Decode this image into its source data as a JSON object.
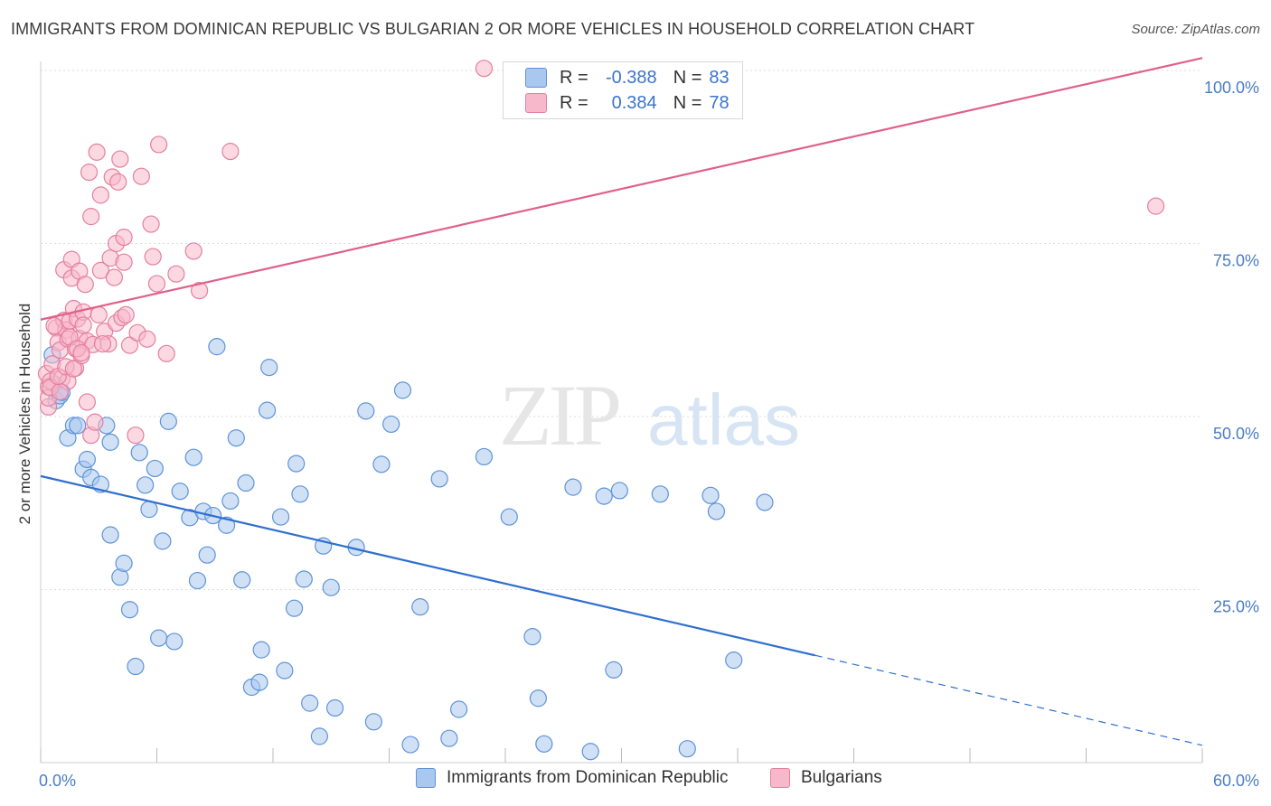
{
  "header": {
    "title": "IMMIGRANTS FROM DOMINICAN REPUBLIC VS BULGARIAN 2 OR MORE VEHICLES IN HOUSEHOLD CORRELATION CHART",
    "source": "Source: ZipAtlas.com"
  },
  "watermark": {
    "zip": "ZIP",
    "atlas": "atlas"
  },
  "legend": {
    "r_label": "R =",
    "n_label": "N =",
    "rows": [
      {
        "r": "-0.388",
        "n": "83"
      },
      {
        "r": "0.384",
        "n": "78"
      }
    ]
  },
  "colors": {
    "blue_fill": "#a9c8ef",
    "blue_stroke": "#5e93d8",
    "blue_line": "#2f6fd0",
    "pink_fill": "#f7b8cb",
    "pink_stroke": "#e57f9f",
    "pink_line": "#e0608a",
    "grid": "#dddddd",
    "tick_text": "#4a7cc7"
  },
  "chart_data": {
    "type": "scatter",
    "ylabel": "2 or more Vehicles in Household",
    "xlim": [
      0,
      60
    ],
    "ylim": [
      0,
      100
    ],
    "x_tick_labels": [
      "0.0%",
      "60.0%"
    ],
    "y_ticks": [
      {
        "value": 25,
        "label": "25.0%"
      },
      {
        "value": 50,
        "label": "50.0%"
      },
      {
        "value": 75,
        "label": "75.0%"
      },
      {
        "value": 100,
        "label": "100.0%"
      }
    ],
    "series": [
      {
        "name": "Immigrants from Dominican Republic",
        "color": "#5e93d8",
        "points": [
          [
            0.6,
            58.9
          ],
          [
            0.7,
            54.7
          ],
          [
            0.8,
            52.3
          ],
          [
            1.0,
            53.0
          ],
          [
            1.1,
            53.5
          ],
          [
            1.4,
            46.9
          ],
          [
            1.7,
            48.7
          ],
          [
            1.9,
            48.7
          ],
          [
            2.2,
            42.4
          ],
          [
            2.6,
            41.2
          ],
          [
            2.4,
            43.8
          ],
          [
            3.1,
            40.2
          ],
          [
            3.4,
            48.7
          ],
          [
            3.6,
            46.3
          ],
          [
            3.6,
            32.9
          ],
          [
            4.1,
            26.8
          ],
          [
            4.3,
            28.8
          ],
          [
            4.6,
            22.1
          ],
          [
            4.9,
            13.9
          ],
          [
            5.1,
            44.8
          ],
          [
            5.4,
            40.1
          ],
          [
            5.6,
            36.6
          ],
          [
            5.9,
            42.5
          ],
          [
            6.1,
            18.0
          ],
          [
            6.3,
            32.0
          ],
          [
            6.6,
            49.3
          ],
          [
            6.9,
            17.5
          ],
          [
            7.2,
            39.2
          ],
          [
            7.7,
            35.4
          ],
          [
            7.9,
            44.1
          ],
          [
            8.1,
            26.3
          ],
          [
            8.4,
            36.3
          ],
          [
            8.6,
            30.0
          ],
          [
            8.9,
            35.7
          ],
          [
            9.1,
            60.1
          ],
          [
            9.6,
            34.3
          ],
          [
            9.8,
            37.8
          ],
          [
            10.1,
            46.9
          ],
          [
            10.4,
            26.4
          ],
          [
            10.6,
            40.4
          ],
          [
            10.9,
            10.9
          ],
          [
            11.3,
            11.6
          ],
          [
            11.4,
            16.3
          ],
          [
            11.7,
            50.9
          ],
          [
            11.8,
            57.1
          ],
          [
            12.4,
            35.5
          ],
          [
            12.6,
            13.3
          ],
          [
            13.1,
            22.3
          ],
          [
            13.2,
            43.2
          ],
          [
            13.4,
            38.8
          ],
          [
            13.6,
            26.5
          ],
          [
            13.9,
            8.6
          ],
          [
            14.4,
            3.8
          ],
          [
            14.6,
            31.3
          ],
          [
            15.0,
            25.3
          ],
          [
            15.2,
            7.9
          ],
          [
            16.3,
            31.1
          ],
          [
            16.8,
            50.8
          ],
          [
            17.2,
            5.9
          ],
          [
            17.6,
            43.1
          ],
          [
            18.1,
            48.9
          ],
          [
            18.7,
            53.8
          ],
          [
            19.1,
            2.6
          ],
          [
            19.6,
            22.5
          ],
          [
            20.6,
            41.0
          ],
          [
            21.1,
            3.5
          ],
          [
            21.6,
            7.7
          ],
          [
            22.9,
            44.2
          ],
          [
            24.2,
            35.5
          ],
          [
            25.4,
            18.2
          ],
          [
            25.7,
            9.3
          ],
          [
            26.0,
            2.7
          ],
          [
            27.5,
            39.8
          ],
          [
            28.4,
            1.6
          ],
          [
            29.1,
            38.5
          ],
          [
            29.9,
            39.3
          ],
          [
            29.6,
            13.4
          ],
          [
            32.0,
            38.8
          ],
          [
            33.4,
            2.0
          ],
          [
            34.6,
            38.6
          ],
          [
            34.9,
            36.3
          ],
          [
            35.8,
            14.8
          ],
          [
            37.4,
            37.6
          ]
        ]
      },
      {
        "name": "Bulgarians",
        "color": "#e57f9f",
        "points": [
          [
            0.3,
            56.2
          ],
          [
            0.4,
            54.3
          ],
          [
            0.4,
            51.4
          ],
          [
            0.5,
            55.1
          ],
          [
            0.6,
            57.6
          ],
          [
            0.8,
            62.8
          ],
          [
            0.9,
            60.7
          ],
          [
            1.0,
            59.6
          ],
          [
            1.1,
            55.5
          ],
          [
            1.2,
            63.9
          ],
          [
            1.2,
            71.2
          ],
          [
            1.3,
            62.5
          ],
          [
            1.4,
            61.2
          ],
          [
            1.4,
            55.1
          ],
          [
            1.5,
            63.8
          ],
          [
            1.6,
            72.7
          ],
          [
            1.6,
            70.0
          ],
          [
            1.7,
            65.6
          ],
          [
            1.8,
            59.8
          ],
          [
            1.8,
            57.0
          ],
          [
            1.9,
            64.1
          ],
          [
            2.0,
            61.3
          ],
          [
            2.0,
            71.0
          ],
          [
            2.1,
            58.8
          ],
          [
            2.2,
            65.1
          ],
          [
            2.2,
            63.2
          ],
          [
            2.3,
            69.1
          ],
          [
            2.4,
            60.9
          ],
          [
            2.5,
            85.3
          ],
          [
            2.6,
            47.3
          ],
          [
            2.6,
            78.9
          ],
          [
            2.8,
            49.2
          ],
          [
            2.9,
            88.2
          ],
          [
            3.0,
            64.7
          ],
          [
            3.1,
            82.0
          ],
          [
            3.1,
            71.1
          ],
          [
            3.3,
            62.3
          ],
          [
            3.5,
            60.5
          ],
          [
            3.6,
            72.9
          ],
          [
            3.7,
            84.6
          ],
          [
            3.8,
            70.1
          ],
          [
            3.9,
            63.5
          ],
          [
            3.9,
            75.0
          ],
          [
            4.0,
            83.9
          ],
          [
            4.1,
            87.2
          ],
          [
            4.2,
            64.3
          ],
          [
            4.3,
            72.3
          ],
          [
            4.3,
            75.9
          ],
          [
            4.4,
            64.7
          ],
          [
            4.6,
            60.3
          ],
          [
            4.9,
            47.3
          ],
          [
            5.0,
            62.1
          ],
          [
            5.2,
            84.7
          ],
          [
            5.5,
            61.2
          ],
          [
            5.7,
            77.8
          ],
          [
            5.8,
            73.1
          ],
          [
            6.0,
            69.2
          ],
          [
            6.1,
            89.3
          ],
          [
            6.5,
            59.1
          ],
          [
            7.0,
            70.6
          ],
          [
            7.9,
            73.9
          ],
          [
            8.2,
            68.2
          ],
          [
            9.8,
            88.3
          ],
          [
            22.9,
            100.3
          ],
          [
            57.6,
            80.4
          ],
          [
            0.4,
            52.7
          ],
          [
            0.5,
            54.2
          ],
          [
            1.0,
            53.6
          ],
          [
            1.5,
            61.5
          ],
          [
            1.9,
            59.8
          ],
          [
            2.7,
            60.4
          ],
          [
            3.2,
            60.5
          ],
          [
            0.9,
            55.8
          ],
          [
            1.3,
            57.2
          ],
          [
            1.7,
            56.9
          ],
          [
            2.1,
            59.2
          ],
          [
            2.4,
            52.1
          ],
          [
            0.7,
            63.1
          ]
        ]
      }
    ],
    "trendlines": [
      {
        "series": "Immigrants from Dominican Republic",
        "x": [
          0,
          40
        ],
        "y": [
          41.4,
          15.5
        ],
        "dashed_to_x": 60,
        "dashed_to_y": 2.5
      },
      {
        "series": "Bulgarians",
        "x": [
          0,
          60
        ],
        "y": [
          64.0,
          101.8
        ]
      }
    ]
  }
}
